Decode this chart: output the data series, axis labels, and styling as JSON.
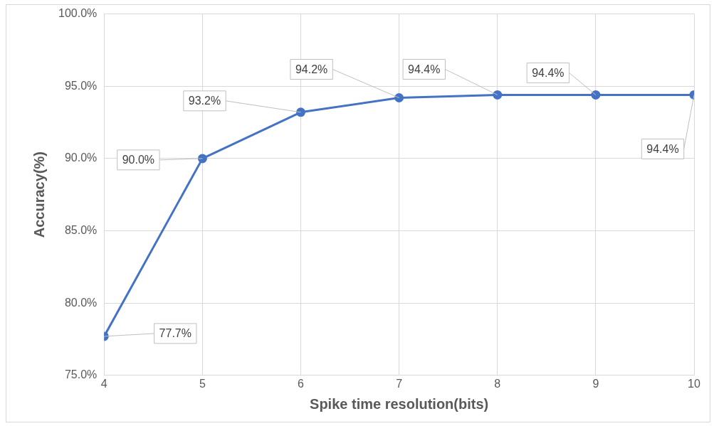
{
  "chart_data": {
    "type": "line",
    "xlabel": "Spike time resolution(bits)",
    "ylabel": "Accuracy(%)",
    "x": [
      4,
      5,
      6,
      7,
      8,
      9,
      10
    ],
    "values": [
      77.7,
      90.0,
      93.2,
      94.2,
      94.4,
      94.4,
      94.4
    ],
    "value_labels": [
      "77.7%",
      "90.0%",
      "93.2%",
      "94.2%",
      "94.4%",
      "94.4%",
      "94.4%"
    ],
    "color": "#4472c4",
    "marker": "circle",
    "grid": true,
    "xlim": [
      4,
      10
    ],
    "xticks": [
      4,
      5,
      6,
      7,
      8,
      9,
      10
    ],
    "ylim": [
      75,
      100
    ],
    "yticks": [
      {
        "value": 75,
        "label": "75.0%"
      },
      {
        "value": 80,
        "label": "80.0%"
      },
      {
        "value": 85,
        "label": "85.0%"
      },
      {
        "value": 90,
        "label": "90.0%"
      },
      {
        "value": 95,
        "label": "95.0%"
      },
      {
        "value": 100,
        "label": "100.0%"
      }
    ]
  }
}
